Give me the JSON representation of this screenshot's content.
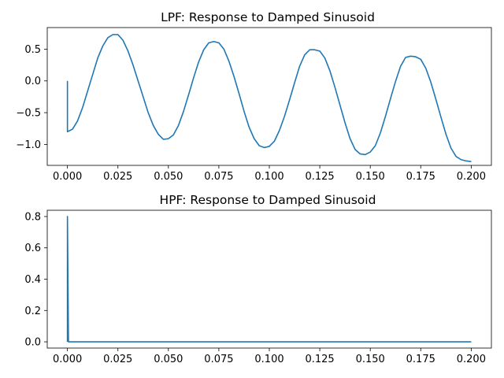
{
  "chart_data": [
    {
      "type": "line",
      "title": "LPF: Response to Damped Sinusoid",
      "xlabel": "",
      "ylabel": "",
      "xlim": [
        -0.01,
        0.21
      ],
      "ylim": [
        -1.33,
        0.84
      ],
      "xticks": [
        0.0,
        0.025,
        0.05,
        0.075,
        0.1,
        0.125,
        0.15,
        0.175,
        0.2
      ],
      "xtick_labels": [
        "0.000",
        "0.025",
        "0.050",
        "0.075",
        "0.100",
        "0.125",
        "0.150",
        "0.175",
        "0.200"
      ],
      "yticks": [
        -1.0,
        -0.5,
        0.0,
        0.5
      ],
      "ytick_labels": [
        "−1.0",
        "−0.5",
        "0.0",
        "0.5"
      ],
      "grid": false,
      "series": [
        {
          "color": "#1f77b4",
          "x": [
            0.0,
            0.0,
            0.0025,
            0.005,
            0.0075,
            0.01,
            0.0125,
            0.015,
            0.0175,
            0.02,
            0.0225,
            0.025,
            0.0275,
            0.03,
            0.0325,
            0.035,
            0.0375,
            0.04,
            0.0425,
            0.045,
            0.0475,
            0.05,
            0.0525,
            0.055,
            0.0575,
            0.06,
            0.0625,
            0.065,
            0.0675,
            0.07,
            0.0725,
            0.075,
            0.0775,
            0.08,
            0.0825,
            0.085,
            0.0875,
            0.09,
            0.0925,
            0.095,
            0.0975,
            0.1,
            0.1025,
            0.105,
            0.1075,
            0.11,
            0.1125,
            0.115,
            0.1175,
            0.12,
            0.1225,
            0.125,
            0.1275,
            0.13,
            0.1325,
            0.135,
            0.1375,
            0.14,
            0.1425,
            0.145,
            0.1475,
            0.15,
            0.1525,
            0.155,
            0.1575,
            0.16,
            0.1625,
            0.165,
            0.1675,
            0.17,
            0.1725,
            0.175,
            0.1775,
            0.18,
            0.1825,
            0.185,
            0.1875,
            0.19,
            0.1925,
            0.195,
            0.1975,
            0.2
          ],
          "y": [
            0.0,
            -0.8,
            -0.76,
            -0.63,
            -0.42,
            -0.16,
            0.1,
            0.36,
            0.55,
            0.68,
            0.73,
            0.73,
            0.64,
            0.47,
            0.25,
            0.0,
            -0.25,
            -0.5,
            -0.7,
            -0.84,
            -0.92,
            -0.91,
            -0.85,
            -0.7,
            -0.48,
            -0.22,
            0.05,
            0.3,
            0.49,
            0.6,
            0.62,
            0.6,
            0.5,
            0.31,
            0.07,
            -0.2,
            -0.48,
            -0.73,
            -0.91,
            -1.02,
            -1.05,
            -1.03,
            -0.95,
            -0.78,
            -0.56,
            -0.3,
            -0.03,
            0.23,
            0.41,
            0.49,
            0.49,
            0.47,
            0.36,
            0.16,
            -0.1,
            -0.38,
            -0.66,
            -0.91,
            -1.08,
            -1.15,
            -1.16,
            -1.12,
            -1.02,
            -0.82,
            -0.56,
            -0.28,
            -0.01,
            0.23,
            0.37,
            0.39,
            0.38,
            0.34,
            0.2,
            -0.02,
            -0.29,
            -0.57,
            -0.84,
            -1.06,
            -1.19,
            -1.24,
            -1.26,
            -1.27
          ]
        }
      ]
    },
    {
      "type": "line",
      "title": "HPF: Response to Damped Sinusoid",
      "xlabel": "",
      "ylabel": "",
      "xlim": [
        -0.01,
        0.21
      ],
      "ylim": [
        -0.04,
        0.84
      ],
      "xticks": [
        0.0,
        0.025,
        0.05,
        0.075,
        0.1,
        0.125,
        0.15,
        0.175,
        0.2
      ],
      "xtick_labels": [
        "0.000",
        "0.025",
        "0.050",
        "0.075",
        "0.100",
        "0.125",
        "0.150",
        "0.175",
        "0.200"
      ],
      "yticks": [
        0.0,
        0.2,
        0.4,
        0.6,
        0.8
      ],
      "ytick_labels": [
        "0.0",
        "0.2",
        "0.4",
        "0.6",
        "0.8"
      ],
      "grid": false,
      "series": [
        {
          "color": "#1f77b4",
          "x": [
            0.0,
            0.0,
            0.0005,
            0.2
          ],
          "y": [
            0.0,
            0.8,
            0.0,
            0.0
          ]
        }
      ]
    }
  ]
}
